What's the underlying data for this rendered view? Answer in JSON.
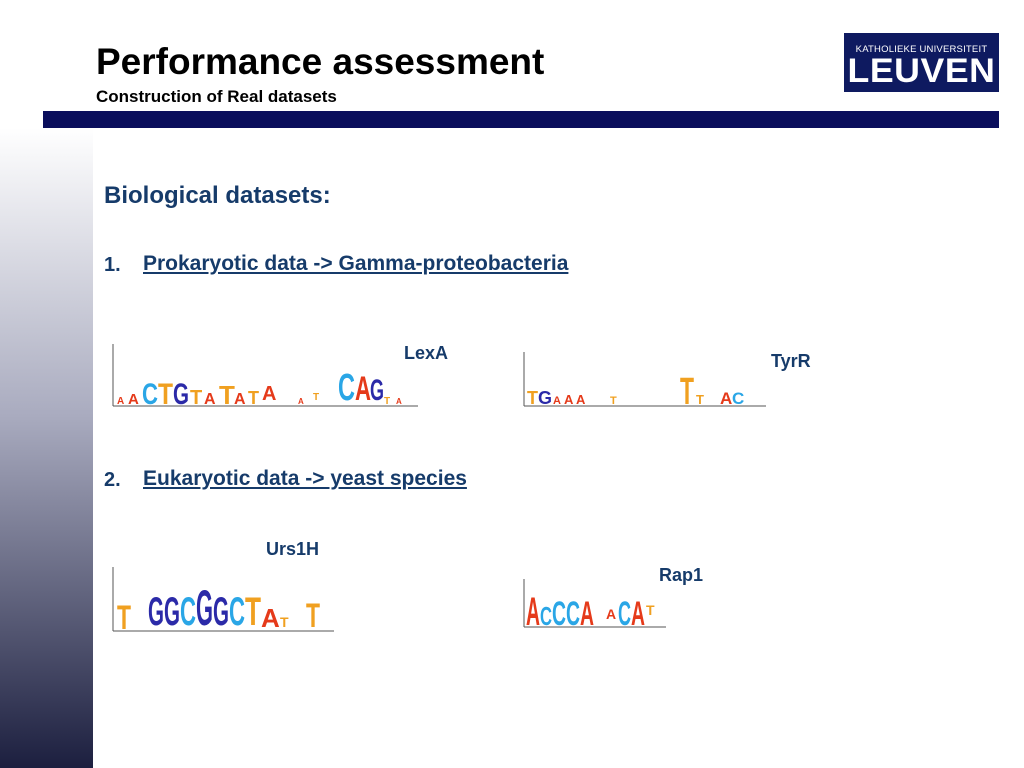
{
  "header": {
    "title": "Performance assessment",
    "subtitle": "Construction of Real datasets",
    "logo_line1": "KATHOLIEKE UNIVERSITEIT",
    "logo_line2": "LEUVEN",
    "rule_color": "#0a0e5c"
  },
  "content": {
    "section_title": "Biological datasets:",
    "items": [
      {
        "number": "1.",
        "label": "Prokaryotic data -> Gamma-proteobacteria"
      },
      {
        "number": "2.",
        "label": "Eukaryotic data -> yeast species"
      }
    ]
  },
  "motifs": {
    "lexa": {
      "label": "LexA",
      "letters": [
        "A",
        "C",
        "T",
        "G",
        "T",
        "A",
        "T",
        "A",
        "T",
        "A",
        "C",
        "A",
        "G"
      ]
    },
    "tyrr": {
      "label": "TyrR",
      "letters": [
        "T",
        "G",
        "A",
        "A",
        "A",
        "T",
        "A",
        "C"
      ]
    },
    "urs1h": {
      "label": "Urs1H",
      "letters": [
        "T",
        "G",
        "G",
        "C",
        "G",
        "G",
        "C",
        "T",
        "A",
        "T"
      ]
    },
    "rap1": {
      "label": "Rap1",
      "letters": [
        "A",
        "C",
        "C",
        "C",
        "A",
        "A",
        "C",
        "A",
        "T"
      ]
    }
  },
  "colors": {
    "A": "#e53a1a",
    "C": "#2aa6e6",
    "G": "#2b2aa8",
    "T": "#f0a020",
    "accent": "#163b6a"
  }
}
